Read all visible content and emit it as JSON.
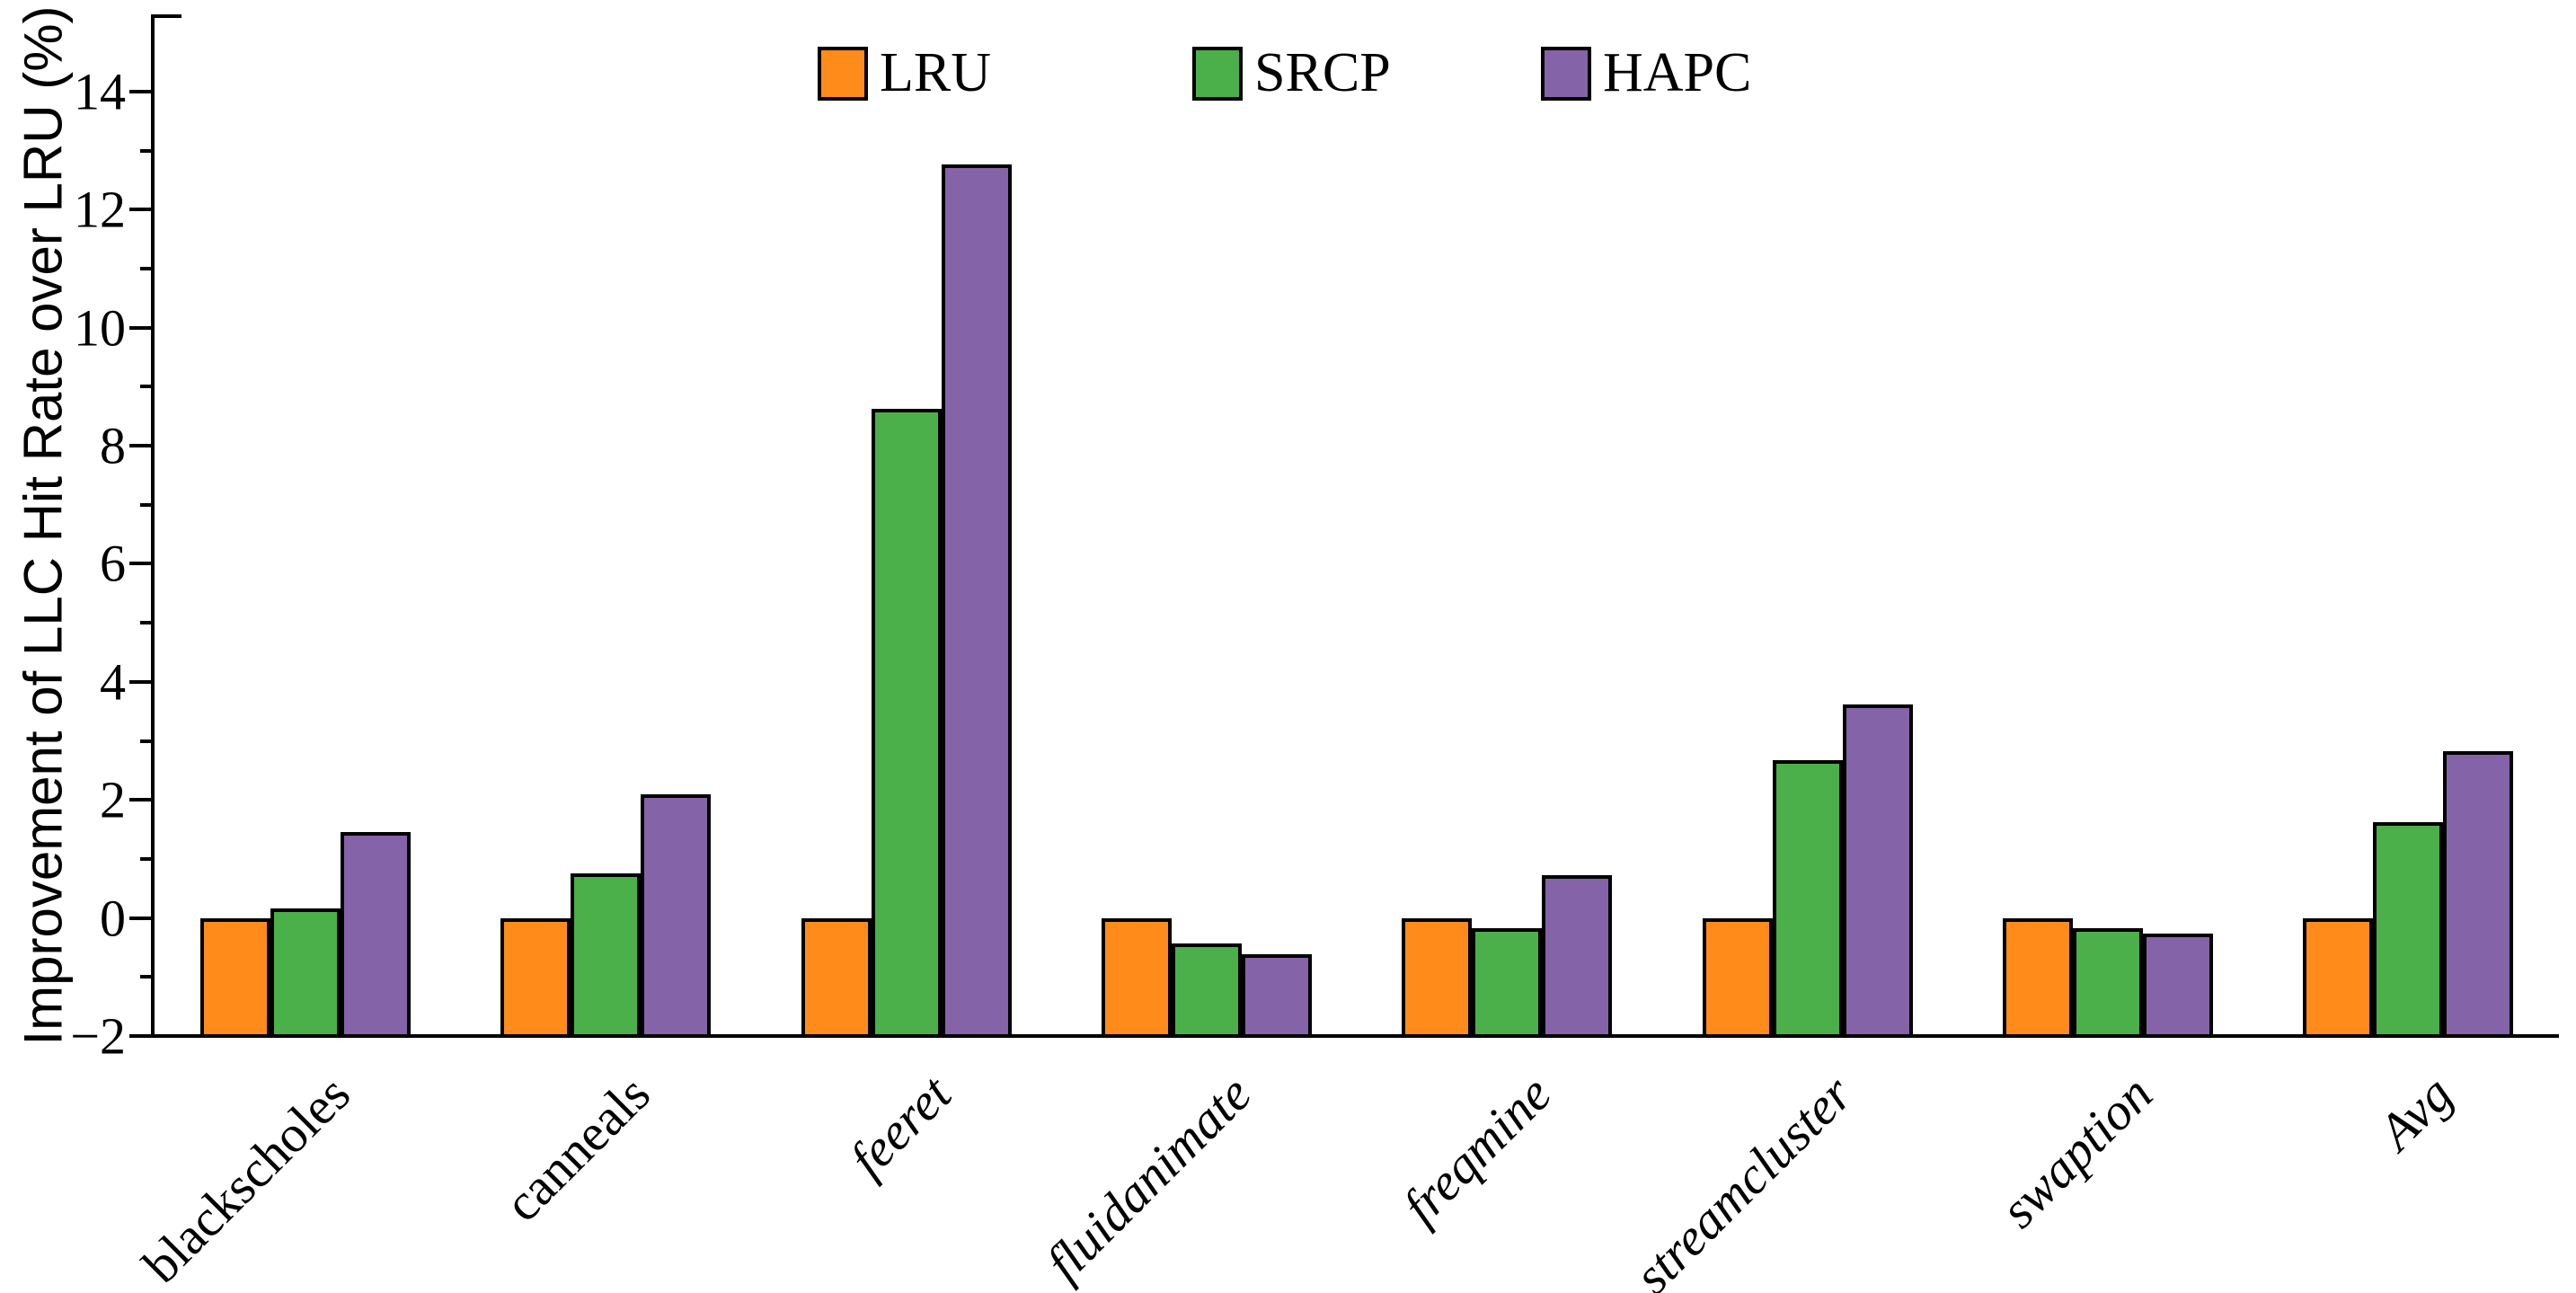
{
  "figure": {
    "background": "#FFFFFF",
    "axis_color": "#000000"
  },
  "chart_data": {
    "type": "bar",
    "title": "",
    "xlabel": "",
    "ylabel": "Improvement of LLC Hit Rate over LRU (%)",
    "ylim": [
      -2,
      15.3
    ],
    "bar_baseline": -2,
    "grid": false,
    "legend_position": "top-center",
    "yticks_major": {
      "values": [
        -2,
        0,
        2,
        4,
        6,
        8,
        10,
        12,
        14
      ],
      "labels": [
        "−2",
        "0",
        "2",
        "4",
        "6",
        "8",
        "10",
        "12",
        "14"
      ]
    },
    "yticks_minor": [
      -1,
      1,
      3,
      5,
      7,
      9,
      11,
      13
    ],
    "categories": [
      {
        "label": "blackscholes",
        "italic": false
      },
      {
        "label": "canneals",
        "italic": false
      },
      {
        "label": "feeret",
        "italic": true
      },
      {
        "label": "fluidanimate",
        "italic": true
      },
      {
        "label": "freqmine",
        "italic": true
      },
      {
        "label": "streamcluster",
        "italic": true
      },
      {
        "label": "swaption",
        "italic": true
      },
      {
        "label": "Avg",
        "italic": true
      }
    ],
    "series": [
      {
        "name": "LRU",
        "color": "#FF8C1A",
        "border": "#000000",
        "values": [
          0,
          0,
          0,
          0,
          0,
          0,
          0,
          0
        ]
      },
      {
        "name": "SRCP",
        "color": "#4BAF4A",
        "border": "#000000",
        "values": [
          0.16,
          0.75,
          8.62,
          -0.43,
          -0.17,
          2.67,
          -0.17,
          1.63
        ]
      },
      {
        "name": "HAPC",
        "color": "#8563A8",
        "border": "#000000",
        "values": [
          1.45,
          2.1,
          12.76,
          -0.62,
          0.73,
          3.62,
          -0.26,
          2.83
        ]
      }
    ]
  }
}
